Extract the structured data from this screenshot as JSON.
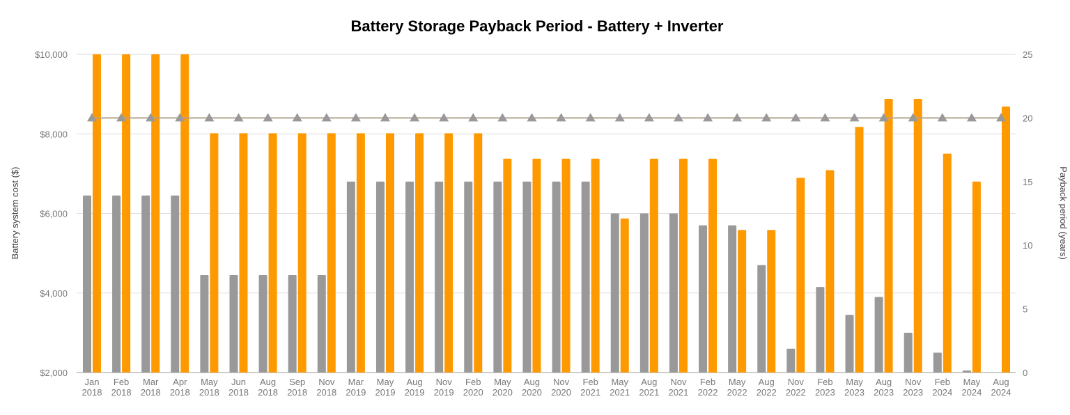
{
  "chart_data": {
    "type": "bar",
    "title": "Battery Storage Payback Period - Battery + Inverter",
    "ylabel": "Battery system cost ($)",
    "y2label": "Payback period (years)",
    "ylim": [
      2000,
      10000
    ],
    "y2lim": [
      0,
      25
    ],
    "yticks": [
      "$2,000",
      "$4,000",
      "$6,000",
      "$8,000",
      "$10,000"
    ],
    "y2ticks": [
      "0",
      "5",
      "10",
      "15",
      "20",
      "25"
    ],
    "grid": true,
    "categories": [
      [
        "Jan",
        "2018"
      ],
      [
        "Feb",
        "2018"
      ],
      [
        "Mar",
        "2018"
      ],
      [
        "Apr",
        "2018"
      ],
      [
        "May",
        "2018"
      ],
      [
        "Jun",
        "2018"
      ],
      [
        "Aug",
        "2018"
      ],
      [
        "Sep",
        "2018"
      ],
      [
        "Nov",
        "2018"
      ],
      [
        "Mar",
        "2019"
      ],
      [
        "May",
        "2019"
      ],
      [
        "Aug",
        "2019"
      ],
      [
        "Nov",
        "2019"
      ],
      [
        "Feb",
        "2020"
      ],
      [
        "May",
        "2020"
      ],
      [
        "Aug",
        "2020"
      ],
      [
        "Nov",
        "2020"
      ],
      [
        "Feb",
        "2021"
      ],
      [
        "May",
        "2021"
      ],
      [
        "Aug",
        "2021"
      ],
      [
        "Nov",
        "2021"
      ],
      [
        "Feb",
        "2022"
      ],
      [
        "May",
        "2022"
      ],
      [
        "Aug",
        "2022"
      ],
      [
        "Nov",
        "2022"
      ],
      [
        "Feb",
        "2023"
      ],
      [
        "May",
        "2023"
      ],
      [
        "Aug",
        "2023"
      ],
      [
        "Nov",
        "2023"
      ],
      [
        "Feb",
        "2024"
      ],
      [
        "May",
        "2024"
      ],
      [
        "Aug",
        "2024"
      ]
    ],
    "series": [
      {
        "axis": "left",
        "type": "bar",
        "color": "#999999",
        "values": [
          6450,
          6450,
          6450,
          6450,
          4450,
          4450,
          4450,
          4450,
          4450,
          6800,
          6800,
          6800,
          6800,
          6800,
          6800,
          6800,
          6800,
          6800,
          6000,
          6000,
          6000,
          5700,
          5700,
          4700,
          2600,
          4150,
          3450,
          3900,
          3000,
          2500,
          2050,
          null
        ]
      },
      {
        "axis": "right",
        "type": "bar",
        "color": "#ff9900",
        "values": [
          25,
          25,
          25,
          25,
          18.8,
          18.8,
          18.8,
          18.8,
          18.8,
          18.8,
          18.8,
          18.8,
          18.8,
          18.8,
          16.8,
          16.8,
          16.8,
          16.8,
          12.1,
          16.8,
          16.8,
          16.8,
          11.2,
          11.2,
          15.3,
          15.9,
          19.3,
          21.5,
          21.5,
          17.2,
          15.0,
          20.9
        ]
      },
      {
        "axis": "right",
        "type": "line",
        "color": "#b5a48f",
        "marker": "triangle",
        "marker_color": "#999999",
        "values": [
          20,
          20,
          20,
          20,
          20,
          20,
          20,
          20,
          20,
          20,
          20,
          20,
          20,
          20,
          20,
          20,
          20,
          20,
          20,
          20,
          20,
          20,
          20,
          20,
          20,
          20,
          20,
          20,
          20,
          20,
          20,
          20
        ]
      }
    ]
  }
}
